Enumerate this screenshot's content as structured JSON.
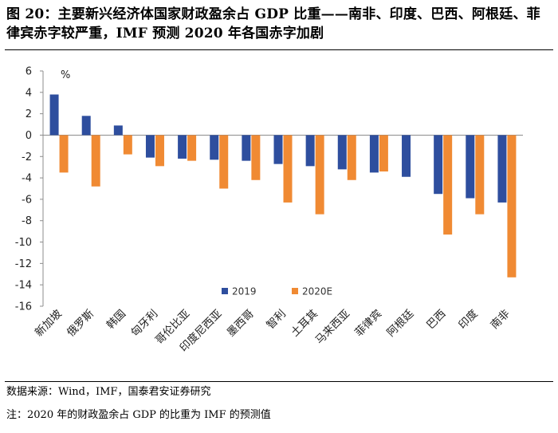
{
  "header": {
    "title": "图 20：主要新兴经济体国家财政盈余占 GDP 比重——南非、印度、巴西、阿根廷、菲律宾赤字较严重，IMF 预测 2020 年各国赤字加剧"
  },
  "footer": {
    "source": "数据来源：Wind，IMF，国泰君安证券研究",
    "note": "注：2020 年的财政盈余占 GDP 的比重为 IMF 的预测值"
  },
  "colors": {
    "series_2019": "#2E4E9E",
    "series_2020E": "#F08A33"
  },
  "chart_data": {
    "type": "bar",
    "title": "",
    "xlabel": "",
    "ylabel": "%",
    "ylim": [
      -16,
      6
    ],
    "yticks": [
      6,
      4,
      2,
      0,
      -2,
      -4,
      -6,
      -8,
      -10,
      -12,
      -14,
      -16
    ],
    "grid": false,
    "legend_position": "bottom-center",
    "categories": [
      "新加坡",
      "俄罗斯",
      "韩国",
      "匈牙利",
      "哥伦比亚",
      "印度尼西亚",
      "墨西哥",
      "智利",
      "土耳其",
      "马来西亚",
      "菲律宾",
      "阿根廷",
      "巴西",
      "印度",
      "南非"
    ],
    "series": [
      {
        "name": "2019",
        "values": [
          3.8,
          1.8,
          0.9,
          -2.1,
          -2.2,
          -2.3,
          -2.4,
          -2.7,
          -2.9,
          -3.2,
          -3.5,
          -3.9,
          -5.5,
          -5.9,
          -6.3
        ]
      },
      {
        "name": "2020E",
        "values": [
          -3.5,
          -4.8,
          -1.8,
          -2.9,
          -2.4,
          -5.0,
          -4.2,
          -6.3,
          -7.4,
          -4.2,
          -3.4,
          null,
          -9.3,
          -7.4,
          -13.3
        ]
      }
    ]
  }
}
